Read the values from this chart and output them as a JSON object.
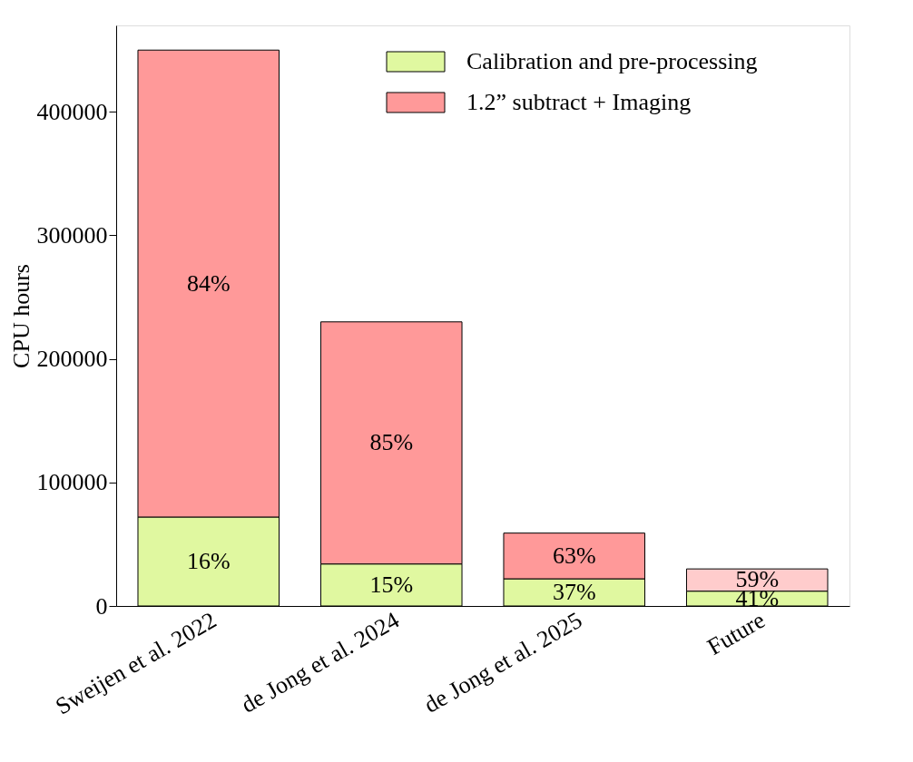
{
  "chart_data": {
    "type": "bar",
    "stacked": true,
    "ylabel": "CPU hours",
    "categories": [
      "Sweijen et al. 2022",
      "de Jong et al. 2024",
      "de Jong et al. 2025",
      "Future"
    ],
    "series": [
      {
        "name": "Calibration and pre-processing",
        "color": "#e0f8a0",
        "colors": [
          "#e0f8a0",
          "#e0f8a0",
          "#e0f8a0",
          "#e0f8a0"
        ],
        "values": [
          72000,
          34000,
          22000,
          12000
        ]
      },
      {
        "name": "1.2” subtract + Imaging",
        "color": "#ff9999",
        "colors": [
          "#ff9999",
          "#ff9999",
          "#ff9999",
          "#ffcccc"
        ],
        "values": [
          378000,
          196000,
          37000,
          18000
        ]
      }
    ],
    "annotations": [
      "16%",
      "15%",
      "37%",
      "41%",
      "84%",
      "85%",
      "63%",
      "59%"
    ],
    "ylim": [
      0,
      470000
    ],
    "yticks": [
      0,
      100000,
      200000,
      300000,
      400000
    ],
    "grid": false,
    "legend": "top right"
  }
}
